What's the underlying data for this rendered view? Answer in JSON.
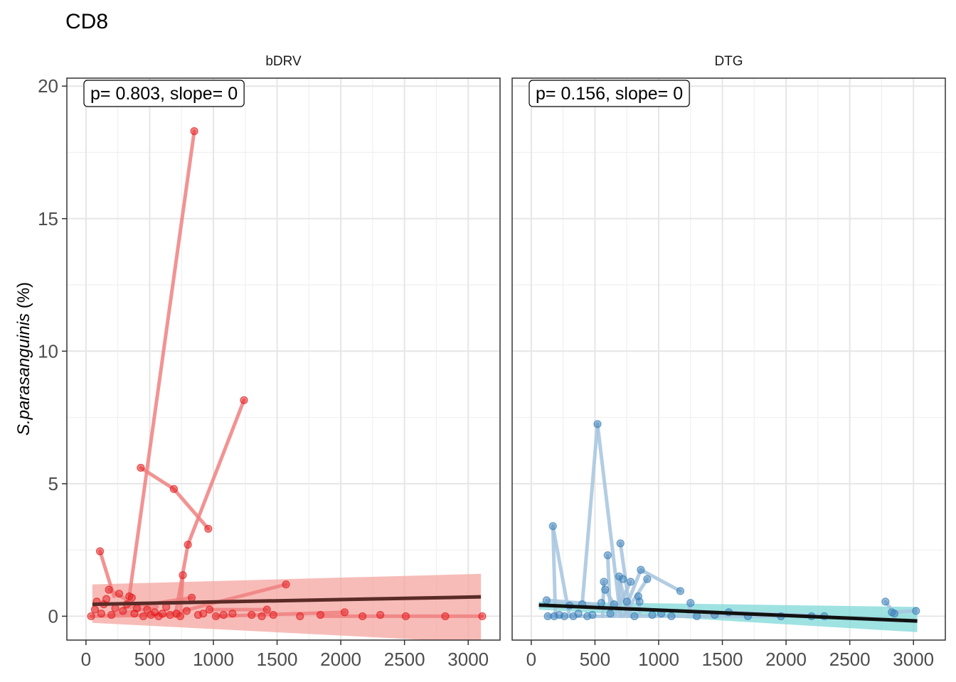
{
  "chart_data": {
    "type": "scatter",
    "title": "CD8",
    "ylabel_italic": "S.parasanguinis",
    "ylabel_suffix": " (%)",
    "xlabel": "",
    "xlim": [
      -150,
      3250
    ],
    "ylim": [
      -0.9,
      20.3
    ],
    "x_ticks": [
      0,
      500,
      1000,
      1500,
      2000,
      2500,
      3000
    ],
    "y_ticks": [
      0,
      5,
      10,
      15,
      20
    ],
    "grid": true,
    "panels": [
      {
        "label": "bDRV",
        "annotation": "p= 0.803, slope= 0",
        "color": "#e41a1c",
        "line_color": "#f08080",
        "trend_color": "#5a2b27",
        "ribbon_color": "#f4a6a0",
        "trend": {
          "x": [
            50,
            3100
          ],
          "y": [
            0.45,
            0.73
          ]
        },
        "ribbon": {
          "x": [
            50,
            3100
          ],
          "upper": [
            1.2,
            1.6
          ],
          "lower": [
            -0.25,
            -1.0
          ]
        },
        "points": [
          {
            "x": 40,
            "y": 0.0
          },
          {
            "x": 70,
            "y": 0.25
          },
          {
            "x": 85,
            "y": 0.55
          },
          {
            "x": 110,
            "y": 2.45
          },
          {
            "x": 120,
            "y": 0.1
          },
          {
            "x": 140,
            "y": 0.45
          },
          {
            "x": 160,
            "y": 0.65
          },
          {
            "x": 180,
            "y": 1.0
          },
          {
            "x": 200,
            "y": 0.05
          },
          {
            "x": 230,
            "y": 0.3
          },
          {
            "x": 260,
            "y": 0.85
          },
          {
            "x": 290,
            "y": 0.2
          },
          {
            "x": 320,
            "y": 0.45
          },
          {
            "x": 340,
            "y": 0.75
          },
          {
            "x": 360,
            "y": 0.7
          },
          {
            "x": 380,
            "y": 0.1
          },
          {
            "x": 400,
            "y": 0.3
          },
          {
            "x": 430,
            "y": 5.6
          },
          {
            "x": 450,
            "y": 0.0
          },
          {
            "x": 480,
            "y": 0.25
          },
          {
            "x": 510,
            "y": 0.05
          },
          {
            "x": 540,
            "y": 0.15
          },
          {
            "x": 570,
            "y": 0.0
          },
          {
            "x": 600,
            "y": 0.1
          },
          {
            "x": 630,
            "y": 0.35
          },
          {
            "x": 660,
            "y": 0.05
          },
          {
            "x": 690,
            "y": 4.8
          },
          {
            "x": 710,
            "y": 0.1
          },
          {
            "x": 740,
            "y": 0.0
          },
          {
            "x": 760,
            "y": 1.55
          },
          {
            "x": 790,
            "y": 0.2
          },
          {
            "x": 800,
            "y": 2.7
          },
          {
            "x": 830,
            "y": 0.7
          },
          {
            "x": 850,
            "y": 18.3
          },
          {
            "x": 880,
            "y": 0.05
          },
          {
            "x": 920,
            "y": 0.1
          },
          {
            "x": 960,
            "y": 3.3
          },
          {
            "x": 970,
            "y": 0.25
          },
          {
            "x": 1020,
            "y": 0.0
          },
          {
            "x": 1080,
            "y": 0.05
          },
          {
            "x": 1150,
            "y": 0.1
          },
          {
            "x": 1240,
            "y": 8.15
          },
          {
            "x": 1300,
            "y": 0.05
          },
          {
            "x": 1380,
            "y": 0.0
          },
          {
            "x": 1420,
            "y": 0.25
          },
          {
            "x": 1470,
            "y": 0.05
          },
          {
            "x": 1570,
            "y": 1.2
          },
          {
            "x": 1680,
            "y": 0.0
          },
          {
            "x": 1840,
            "y": 0.05
          },
          {
            "x": 2030,
            "y": 0.15
          },
          {
            "x": 2170,
            "y": 0.0
          },
          {
            "x": 2310,
            "y": 0.05
          },
          {
            "x": 2510,
            "y": 0.0
          },
          {
            "x": 2820,
            "y": 0.0
          },
          {
            "x": 3110,
            "y": 0.0
          }
        ],
        "segments": [
          [
            [
              110,
              2.45
            ],
            [
              220,
              0.75
            ]
          ],
          [
            [
              180,
              1.0
            ],
            [
              330,
              0.6
            ]
          ],
          [
            [
              340,
              0.75
            ],
            [
              850,
              18.3
            ]
          ],
          [
            [
              430,
              5.6
            ],
            [
              690,
              4.8
            ]
          ],
          [
            [
              690,
              4.8
            ],
            [
              960,
              3.3
            ]
          ],
          [
            [
              700,
              0.0
            ],
            [
              800,
              2.7
            ]
          ],
          [
            [
              800,
              2.7
            ],
            [
              1240,
              8.15
            ]
          ],
          [
            [
              740,
              0.0
            ],
            [
              760,
              1.55
            ]
          ],
          [
            [
              40,
              0.0
            ],
            [
              620,
              0.05
            ]
          ],
          [
            [
              600,
              0.0
            ],
            [
              1570,
              1.2
            ]
          ],
          [
            [
              1020,
              0.0
            ],
            [
              2030,
              0.15
            ]
          ],
          [
            [
              1840,
              0.0
            ],
            [
              3110,
              0.0
            ]
          ],
          [
            [
              300,
              0.3
            ],
            [
              830,
              0.7
            ]
          ],
          [
            [
              970,
              0.25
            ],
            [
              1420,
              0.25
            ]
          ],
          [
            [
              200,
              0.05
            ],
            [
              560,
              0.35
            ]
          ]
        ]
      },
      {
        "label": "DTG",
        "annotation": "p= 0.156, slope= 0",
        "color": "#377eb8",
        "line_color": "#a6c4de",
        "trend_color": "#111111",
        "ribbon_color": "#7fd8d8",
        "trend": {
          "x": [
            60,
            3030
          ],
          "y": [
            0.42,
            -0.18
          ]
        },
        "ribbon": {
          "x": [
            60,
            3030
          ],
          "upper": [
            0.55,
            0.35
          ],
          "lower": [
            0.25,
            -0.6
          ]
        },
        "points": [
          {
            "x": 120,
            "y": 0.6
          },
          {
            "x": 130,
            "y": 0.0
          },
          {
            "x": 170,
            "y": 3.4
          },
          {
            "x": 180,
            "y": 0.0
          },
          {
            "x": 220,
            "y": 0.05
          },
          {
            "x": 260,
            "y": 0.0
          },
          {
            "x": 300,
            "y": 0.4
          },
          {
            "x": 330,
            "y": 0.0
          },
          {
            "x": 370,
            "y": 0.1
          },
          {
            "x": 400,
            "y": 0.45
          },
          {
            "x": 440,
            "y": 0.0
          },
          {
            "x": 480,
            "y": 0.05
          },
          {
            "x": 520,
            "y": 7.25
          },
          {
            "x": 550,
            "y": 0.5
          },
          {
            "x": 570,
            "y": 1.3
          },
          {
            "x": 580,
            "y": 1.0
          },
          {
            "x": 600,
            "y": 2.3
          },
          {
            "x": 620,
            "y": 0.1
          },
          {
            "x": 650,
            "y": 0.45
          },
          {
            "x": 690,
            "y": 1.5
          },
          {
            "x": 700,
            "y": 2.75
          },
          {
            "x": 720,
            "y": 1.4
          },
          {
            "x": 750,
            "y": 0.55
          },
          {
            "x": 780,
            "y": 1.3
          },
          {
            "x": 810,
            "y": 0.0
          },
          {
            "x": 840,
            "y": 0.75
          },
          {
            "x": 850,
            "y": 0.55
          },
          {
            "x": 860,
            "y": 1.75
          },
          {
            "x": 910,
            "y": 1.4
          },
          {
            "x": 950,
            "y": 0.05
          },
          {
            "x": 1020,
            "y": 0.1
          },
          {
            "x": 1100,
            "y": 0.0
          },
          {
            "x": 1170,
            "y": 0.95
          },
          {
            "x": 1250,
            "y": 0.5
          },
          {
            "x": 1300,
            "y": 0.0
          },
          {
            "x": 1440,
            "y": 0.05
          },
          {
            "x": 1550,
            "y": 0.15
          },
          {
            "x": 1700,
            "y": 0.0
          },
          {
            "x": 1960,
            "y": 0.0
          },
          {
            "x": 2200,
            "y": 0.0
          },
          {
            "x": 2300,
            "y": 0.0
          },
          {
            "x": 2780,
            "y": 0.55
          },
          {
            "x": 2830,
            "y": 0.15
          },
          {
            "x": 2850,
            "y": 0.1
          },
          {
            "x": 3020,
            "y": 0.2
          }
        ],
        "segments": [
          [
            [
              120,
              0.6
            ],
            [
              520,
              0.45
            ]
          ],
          [
            [
              170,
              3.4
            ],
            [
              300,
              0.0
            ]
          ],
          [
            [
              170,
              3.4
            ],
            [
              190,
              0.0
            ]
          ],
          [
            [
              400,
              0.45
            ],
            [
              520,
              7.25
            ]
          ],
          [
            [
              520,
              7.25
            ],
            [
              700,
              0.0
            ]
          ],
          [
            [
              600,
              2.3
            ],
            [
              620,
              0.1
            ]
          ],
          [
            [
              700,
              2.75
            ],
            [
              780,
              0.0
            ]
          ],
          [
            [
              690,
              1.5
            ],
            [
              760,
              0.0
            ]
          ],
          [
            [
              690,
              1.5
            ],
            [
              700,
              0.0
            ]
          ],
          [
            [
              570,
              1.3
            ],
            [
              560,
              0.0
            ]
          ],
          [
            [
              580,
              1.0
            ],
            [
              650,
              0.45
            ]
          ],
          [
            [
              860,
              1.75
            ],
            [
              1170,
              0.95
            ]
          ],
          [
            [
              860,
              1.75
            ],
            [
              740,
              0.3
            ]
          ],
          [
            [
              910,
              1.4
            ],
            [
              720,
              0.0
            ]
          ],
          [
            [
              780,
              1.3
            ],
            [
              650,
              0.0
            ]
          ],
          [
            [
              840,
              0.75
            ],
            [
              850,
              0.1
            ]
          ],
          [
            [
              1250,
              0.5
            ],
            [
              1230,
              0.0
            ]
          ],
          [
            [
              2780,
              0.55
            ],
            [
              2850,
              0.1
            ]
          ],
          [
            [
              2830,
              0.15
            ],
            [
              3020,
              0.2
            ]
          ],
          [
            [
              130,
              0.0
            ],
            [
              1960,
              0.0
            ]
          ],
          [
            [
              1550,
              0.15
            ],
            [
              2300,
              0.0
            ]
          ]
        ]
      }
    ]
  }
}
